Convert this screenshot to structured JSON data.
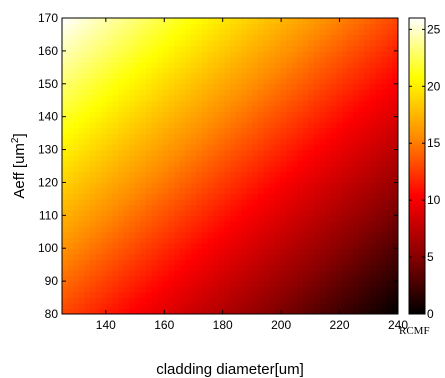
{
  "chart_data": {
    "type": "heatmap",
    "title": "",
    "xlabel": "cladding diameter[um]",
    "ylabel_base": "Aeff [um",
    "ylabel_sup": "2",
    "ylabel_end": "]",
    "xlim": [
      125,
      240
    ],
    "ylim": [
      80,
      170
    ],
    "x_ticks": [
      140,
      160,
      180,
      200,
      220,
      240
    ],
    "y_ticks": [
      80,
      90,
      100,
      110,
      120,
      130,
      140,
      150,
      160,
      170
    ],
    "colormap": "hot",
    "colorbar": {
      "label": "RCMF",
      "range": [
        0,
        26
      ],
      "ticks": [
        0,
        5,
        10,
        15,
        20,
        25
      ],
      "colors": [
        "#000000",
        "#8b0000",
        "#ff0000",
        "#ff8c00",
        "#ffff00",
        "#ffffff"
      ]
    },
    "corner_values": {
      "x125_y80": 13,
      "x240_y80": 0,
      "x125_y170": 26,
      "x240_y170": 13
    },
    "grid": false
  }
}
